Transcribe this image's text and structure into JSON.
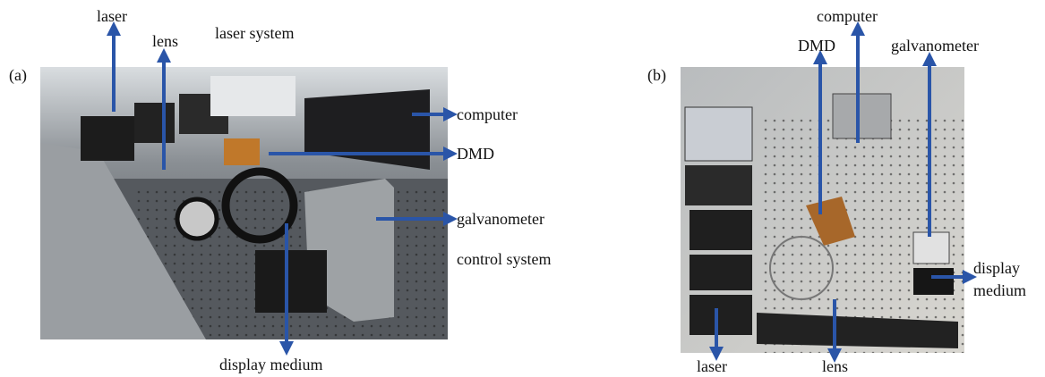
{
  "panel_a": {
    "label": "(a)",
    "annotations": {
      "laser": "laser",
      "lens": "lens",
      "laser_system": "laser system",
      "computer": "computer",
      "dmd": "DMD",
      "galvanometer": "galvanometer",
      "control_system": "control system",
      "display_medium": "display medium"
    }
  },
  "panel_b": {
    "label": "(b)",
    "annotations": {
      "dmd": "DMD",
      "computer": "computer",
      "galvanometer": "galvanometer",
      "display_medium": [
        "display",
        "medium"
      ],
      "laser": "laser",
      "lens": "lens"
    }
  }
}
